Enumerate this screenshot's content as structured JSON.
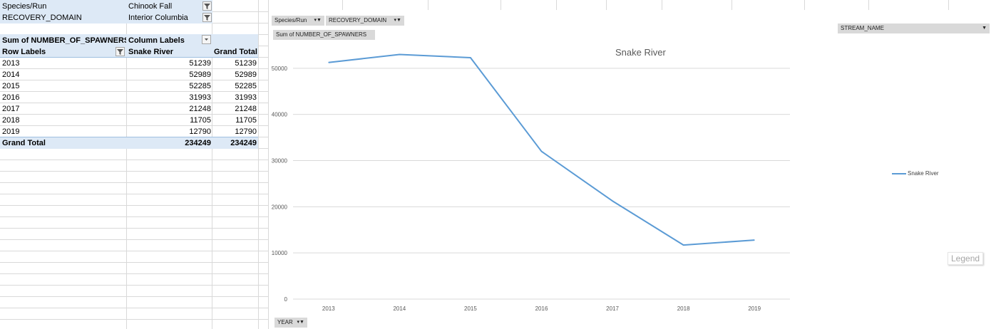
{
  "filters": [
    {
      "field": "Species/Run",
      "value": "Chinook  Fall"
    },
    {
      "field": "RECOVERY_DOMAIN",
      "value": "Interior Columbia"
    }
  ],
  "pivot": {
    "value_header": "Sum of NUMBER_OF_SPAWNERS",
    "column_labels": "Column Labels",
    "row_labels": "Row Labels",
    "col1": "Snake River",
    "col2": "Grand Total",
    "rows": [
      {
        "label": "2013",
        "v1": "51239",
        "v2": "51239"
      },
      {
        "label": "2014",
        "v1": "52989",
        "v2": "52989"
      },
      {
        "label": "2015",
        "v1": "52285",
        "v2": "52285"
      },
      {
        "label": "2016",
        "v1": "31993",
        "v2": "31993"
      },
      {
        "label": "2017",
        "v1": "21248",
        "v2": "21248"
      },
      {
        "label": "2018",
        "v1": "11705",
        "v2": "11705"
      },
      {
        "label": "2019",
        "v1": "12790",
        "v2": "12790"
      }
    ],
    "total_label": "Grand Total",
    "total_v1": "234249",
    "total_v2": "234249"
  },
  "chart_buttons": {
    "species": "Species/Run",
    "domain": "RECOVERY_DOMAIN",
    "values": "Sum of NUMBER_OF_SPAWNERS",
    "stream": "STREAM_NAME",
    "year": "YEAR"
  },
  "legend_label": "Legend",
  "colors": {
    "series": "#5b9bd5",
    "band": "#dde9f6"
  },
  "chart_data": {
    "type": "line",
    "title": "Snake River",
    "x": [
      "2013",
      "2014",
      "2015",
      "2016",
      "2017",
      "2018",
      "2019"
    ],
    "series": [
      {
        "name": "Snake River",
        "values": [
          51239,
          52989,
          52285,
          31993,
          21248,
          11705,
          12790
        ]
      }
    ],
    "ylim": [
      0,
      60000
    ],
    "yticks": [
      "0",
      "10000",
      "20000",
      "30000",
      "40000",
      "50000"
    ],
    "grid": true,
    "legend": "right"
  }
}
